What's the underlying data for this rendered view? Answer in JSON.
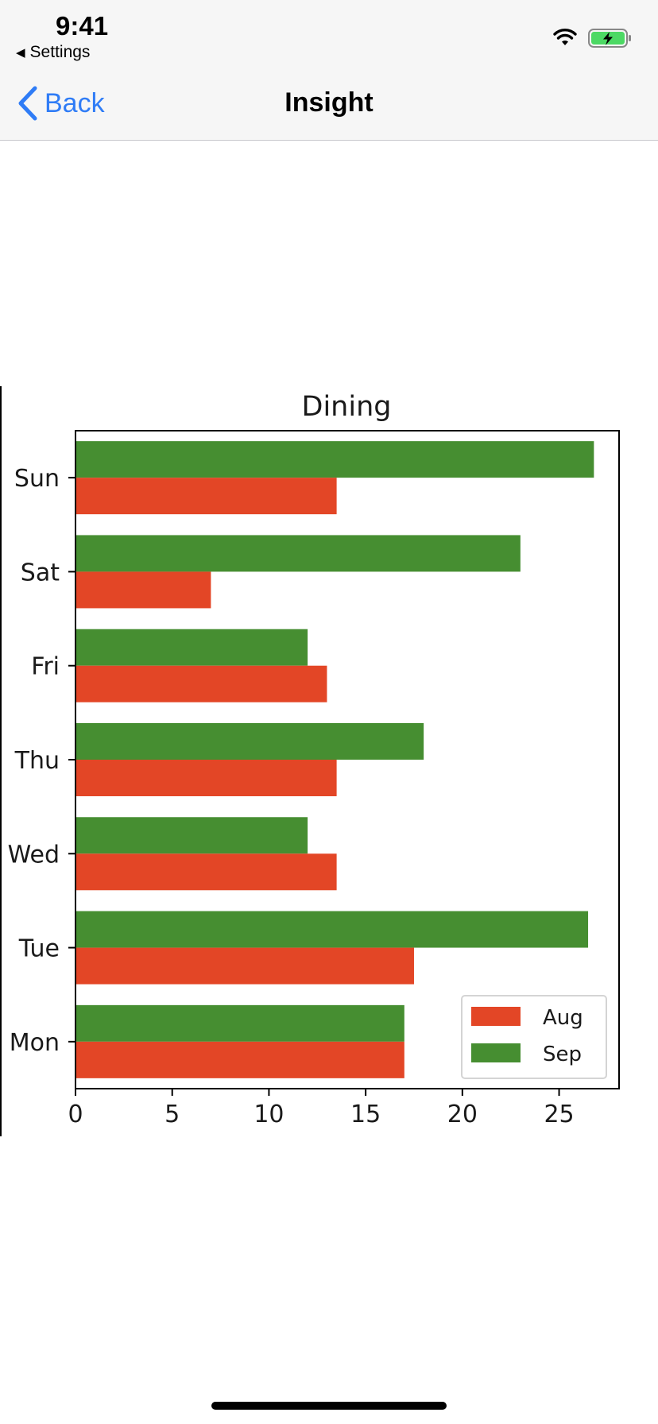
{
  "status_bar": {
    "time": "9:41",
    "back_app_label": "Settings",
    "icons": [
      "wifi-icon",
      "battery-charging-icon"
    ]
  },
  "nav": {
    "back_label": "Back",
    "title": "Insight"
  },
  "colors": {
    "nav_accent": "#2f7cf6",
    "aug": "#e34626",
    "sep": "#468e31"
  },
  "chart_data": {
    "type": "bar",
    "orientation": "horizontal",
    "title": "Dining",
    "xlabel": "",
    "ylabel": "",
    "categories": [
      "Mon",
      "Tue",
      "Wed",
      "Thu",
      "Fri",
      "Sat",
      "Sun"
    ],
    "series": [
      {
        "name": "Aug",
        "color": "#e34626",
        "values": [
          17,
          17.5,
          13.5,
          13.5,
          13,
          7,
          13.5
        ]
      },
      {
        "name": "Sep",
        "color": "#468e31",
        "values": [
          17,
          26.5,
          12,
          18,
          12,
          23,
          26.8
        ]
      }
    ],
    "xlim": [
      0,
      28.1
    ],
    "xticks": [
      0,
      5,
      10,
      15,
      20,
      25
    ],
    "grid": false,
    "legend_position": "lower-right"
  }
}
